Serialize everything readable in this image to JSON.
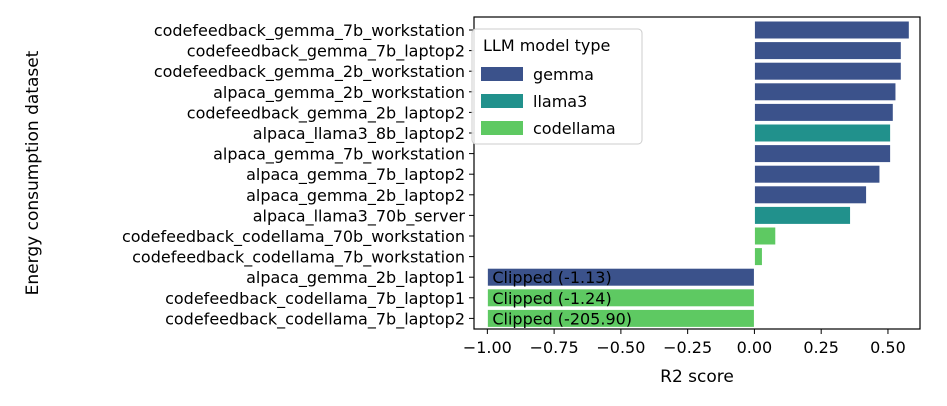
{
  "chart_data": {
    "type": "bar",
    "orientation": "horizontal",
    "title": "",
    "xlabel": "R2 score",
    "ylabel": "Energy consumption dataset",
    "xlim": [
      -1.05,
      0.62
    ],
    "xticks": [
      -1.0,
      -0.75,
      -0.5,
      -0.25,
      0.0,
      0.25,
      0.5
    ],
    "xtick_labels": [
      "−1.00",
      "−0.75",
      "−0.50",
      "−0.25",
      "0.00",
      "0.25",
      "0.50"
    ],
    "grid": false,
    "legend": {
      "title": "LLM model type",
      "placement": "top-left",
      "entries": [
        {
          "name": "gemma",
          "color": "#3b528b"
        },
        {
          "name": "llama3",
          "color": "#21918c"
        },
        {
          "name": "codellama",
          "color": "#5ec962"
        }
      ]
    },
    "categories": [
      "codefeedback_gemma_7b_workstation",
      "codefeedback_gemma_7b_laptop2",
      "codefeedback_gemma_2b_workstation",
      "alpaca_gemma_2b_workstation",
      "codefeedback_gemma_2b_laptop2",
      "alpaca_llama3_8b_laptop2",
      "alpaca_gemma_7b_workstation",
      "alpaca_gemma_7b_laptop2",
      "alpaca_gemma_2b_laptop2",
      "alpaca_llama3_70b_server",
      "codefeedback_codellama_70b_workstation",
      "codefeedback_codellama_7b_workstation",
      "alpaca_gemma_2b_laptop1",
      "codefeedback_codellama_7b_laptop1",
      "codefeedback_codellama_7b_laptop2"
    ],
    "values": [
      0.58,
      0.55,
      0.55,
      0.53,
      0.52,
      0.51,
      0.51,
      0.47,
      0.42,
      0.36,
      0.08,
      0.03,
      -1.0,
      -1.0,
      -1.0
    ],
    "model_type": [
      "gemma",
      "gemma",
      "gemma",
      "gemma",
      "gemma",
      "llama3",
      "gemma",
      "gemma",
      "gemma",
      "llama3",
      "codellama",
      "codellama",
      "gemma",
      "codellama",
      "codellama"
    ],
    "bar_labels": [
      "",
      "",
      "",
      "",
      "",
      "",
      "",
      "",
      "",
      "",
      "",
      "",
      "Clipped (-1.13)",
      "Clipped (-1.24)",
      "Clipped (-205.90)"
    ]
  }
}
